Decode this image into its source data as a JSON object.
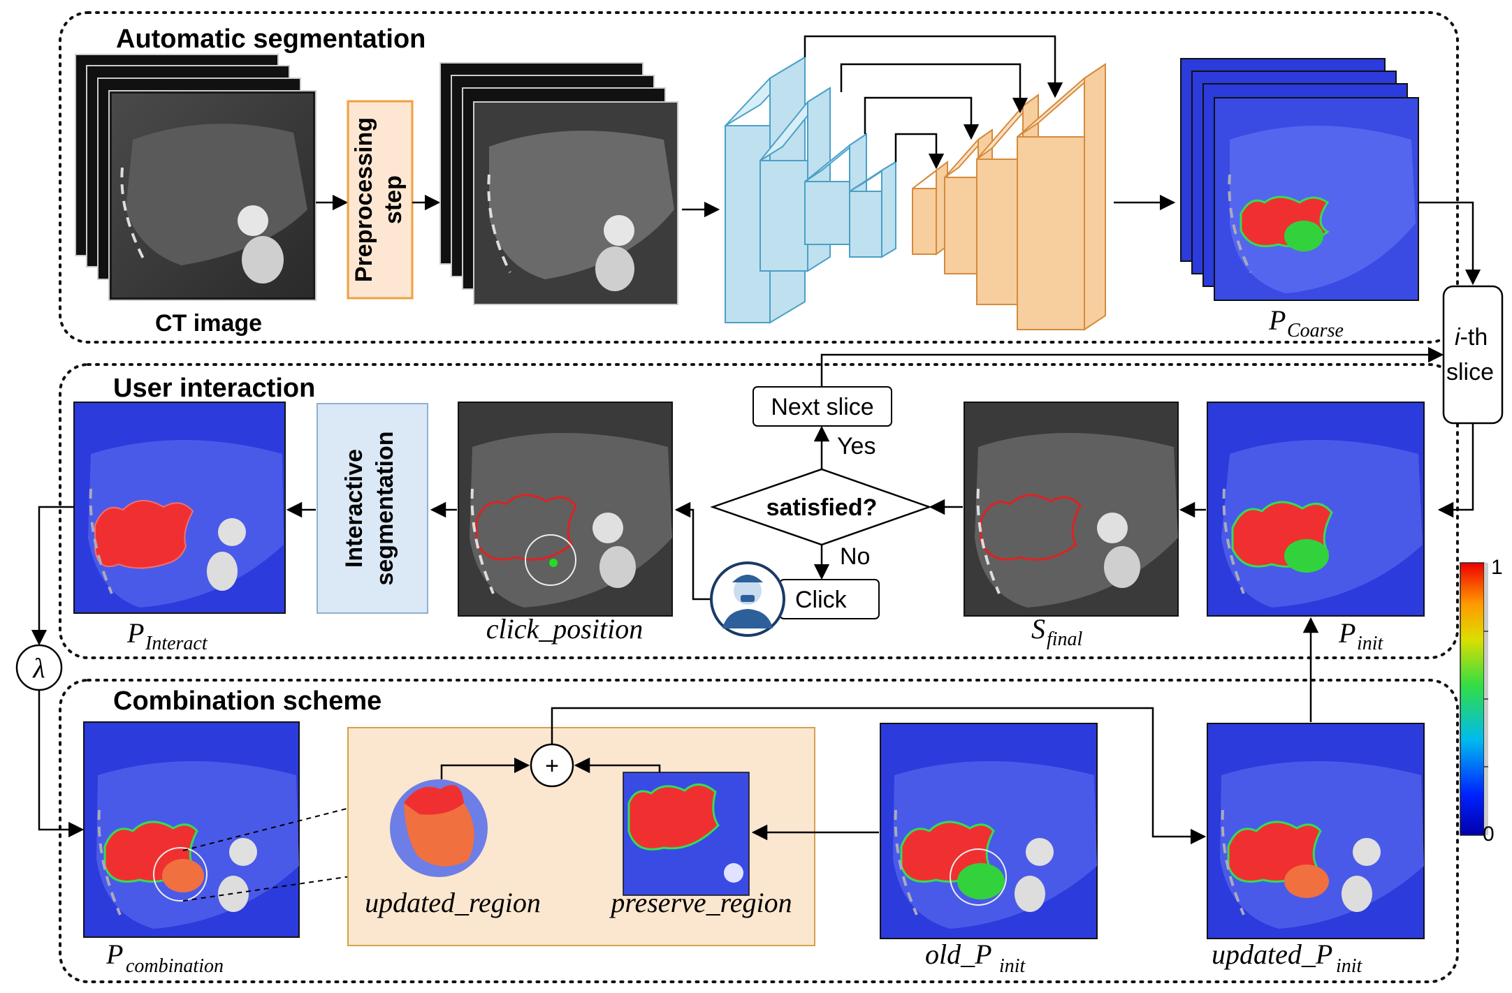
{
  "sections": {
    "automatic": "Automatic segmentation",
    "user": "User interaction",
    "combination": "Combination scheme"
  },
  "labels": {
    "ct_image": "CT image",
    "preprocessing": "Preprocessing step",
    "ith_slice_i": "i",
    "ith_slice_th": "-th",
    "ith_slice_slice": "slice",
    "interactive": "Interactive segmentation",
    "next_slice": "Next slice",
    "yes": "Yes",
    "no": "No",
    "satisfied": "satisfied?",
    "click": "Click",
    "lambda": "λ",
    "plus": "+"
  },
  "math": {
    "p_coarse": {
      "base": "P",
      "sub": "Coarse"
    },
    "p_interact": {
      "base": "P",
      "sub": "Interact"
    },
    "click_position": "click_position",
    "s_final": {
      "base": "S",
      "sub": "final"
    },
    "p_init": {
      "base": "P",
      "sub": "init"
    },
    "p_combination": {
      "base": "P",
      "sub": "combination"
    },
    "updated_region": "updated_region",
    "preserve_region": "preserve_region",
    "old_p_init": {
      "base": "old_P",
      "sub": "init"
    },
    "updated_p_init": {
      "base": "updated_P",
      "sub": "init"
    }
  },
  "colorbar": {
    "max": "1",
    "min": "0"
  },
  "colors": {
    "unet_encoder": "#bfe0ee",
    "unet_decoder": "#f7ce9e",
    "preprocess_fill": "#fde7d2",
    "interactive_fill": "#dbe8f6",
    "combination_fill": "#fbe6cf",
    "tumor_red": "#f03030",
    "tumor_green": "#32d23c",
    "tumor_orange": "#f07040",
    "prob_blue": "#2b3bdc"
  }
}
